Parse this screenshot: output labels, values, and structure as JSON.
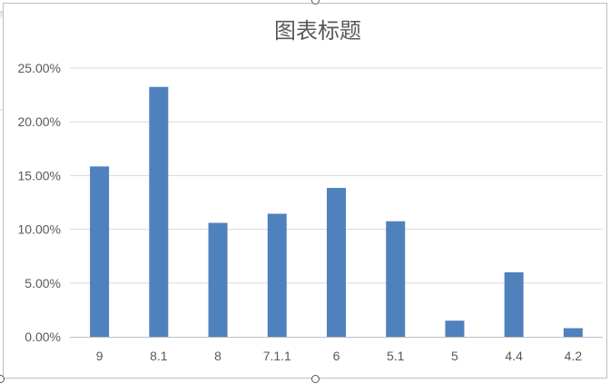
{
  "chart_data": {
    "type": "bar",
    "title": "图表标题",
    "xlabel": "",
    "ylabel": "",
    "categories": [
      "9",
      "8.1",
      "8",
      "7.1.1",
      "6",
      "5.1",
      "5",
      "4.4",
      "4.2"
    ],
    "values": [
      0.1585,
      0.2325,
      0.106,
      0.1145,
      0.1385,
      0.1075,
      0.015,
      0.06,
      0.008
    ],
    "ylim": [
      0,
      0.25
    ],
    "yticks": [
      0,
      0.05,
      0.1,
      0.15,
      0.2,
      0.25
    ],
    "ytick_labels": [
      "0.00%",
      "5.00%",
      "10.00%",
      "15.00%",
      "20.00%",
      "25.00%"
    ],
    "grid": true,
    "legend": "none",
    "colors": {
      "bar": "#4f81bd",
      "grid": "#d9d9d9",
      "axis": "#bfbfbf",
      "tick_text": "#595959",
      "title_text": "#595959"
    }
  }
}
